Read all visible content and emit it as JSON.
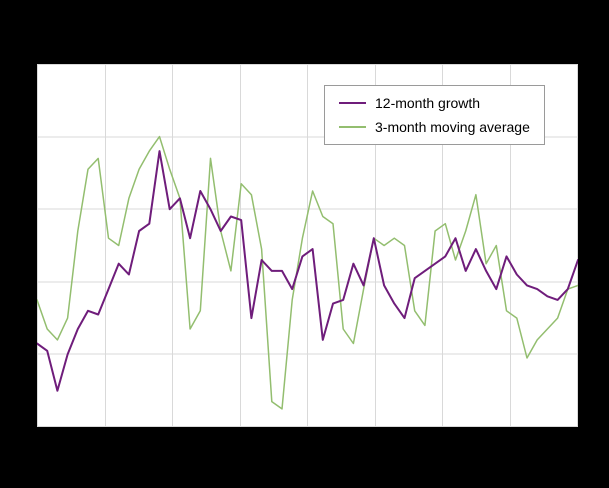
{
  "chart_data": {
    "type": "line",
    "title": "",
    "xlabel": "",
    "ylabel": "",
    "x": "monthly observations (54 points, tick labels not visible in image)",
    "ylim": [
      0,
      10
    ],
    "y_gridline_step": 2,
    "x_gridline_count": 8,
    "grid": true,
    "grid_color": "#d9d9d9",
    "plot_background": "#ffffff",
    "canvas_background": "#000000",
    "legend_position": "inside-top-right",
    "series": [
      {
        "name": "12-month growth",
        "color": "#6f1d7b",
        "width": 2,
        "values": [
          2.3,
          2.1,
          1.0,
          2.0,
          2.7,
          3.2,
          3.1,
          3.8,
          4.5,
          4.2,
          5.4,
          5.6,
          7.6,
          6.0,
          6.3,
          5.2,
          6.5,
          6.0,
          5.4,
          5.8,
          5.7,
          3.0,
          4.6,
          4.3,
          4.3,
          3.8,
          4.7,
          4.9,
          2.4,
          3.4,
          3.5,
          4.5,
          3.9,
          5.2,
          3.9,
          3.4,
          3.0,
          4.1,
          4.3,
          4.5,
          4.7,
          5.2,
          4.3,
          4.9,
          4.3,
          3.8,
          4.7,
          4.2,
          3.9,
          3.8,
          3.6,
          3.5,
          3.8,
          4.6
        ]
      },
      {
        "name": "3-month moving average",
        "color": "#93be6f",
        "width": 1.5,
        "values": [
          3.5,
          2.7,
          2.4,
          3.0,
          5.4,
          7.1,
          7.4,
          5.2,
          5.0,
          6.3,
          7.1,
          7.6,
          8.0,
          7.1,
          6.3,
          2.7,
          3.2,
          7.4,
          5.4,
          4.3,
          6.7,
          6.4,
          4.9,
          0.7,
          0.5,
          3.5,
          5.2,
          6.5,
          5.8,
          5.6,
          2.7,
          2.3,
          3.8,
          5.2,
          5.0,
          5.2,
          5.0,
          3.2,
          2.8,
          5.4,
          5.6,
          4.6,
          5.4,
          6.4,
          4.5,
          5.0,
          3.2,
          3.0,
          1.9,
          2.4,
          2.7,
          3.0,
          3.8,
          3.9
        ]
      }
    ]
  }
}
